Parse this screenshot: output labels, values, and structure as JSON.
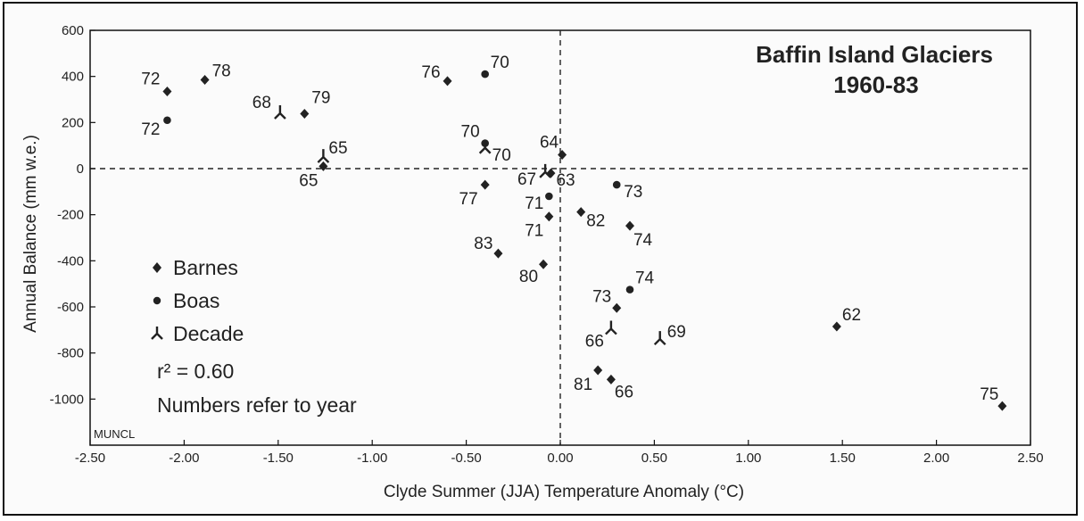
{
  "chart_data": {
    "type": "scatter",
    "title": "Baffin Island Glaciers",
    "subtitle": "1960-83",
    "xlabel": "Clyde Summer (JJA) Temperature Anomaly (°C)",
    "ylabel": "Annual Balance (mm w.e.)",
    "xlim": [
      -2.5,
      2.5
    ],
    "ylim": [
      -1200,
      600
    ],
    "xticks": [
      "-2.50",
      "-2.00",
      "-1.50",
      "-1.00",
      "-0.50",
      "0.00",
      "0.50",
      "1.00",
      "1.50",
      "2.00",
      "2.50"
    ],
    "yticks": [
      "600",
      "400",
      "200",
      "0",
      "-200",
      "-400",
      "-600",
      "-800",
      "-1000"
    ],
    "grid": false,
    "reference_lines": {
      "x": 0,
      "y": 0,
      "style": "dashed"
    },
    "legend": [
      {
        "name": "Barnes",
        "marker": "diamond"
      },
      {
        "name": "Boas",
        "marker": "circle"
      },
      {
        "name": "Decade",
        "marker": "tripod"
      }
    ],
    "annotations": [
      "r² = 0.60",
      "Numbers refer to year"
    ],
    "corner_tag": "MUNCL",
    "series": [
      {
        "name": "Barnes",
        "points": [
          {
            "x": -2.09,
            "y": 335,
            "label": "72"
          },
          {
            "x": -1.89,
            "y": 385,
            "label": "78"
          },
          {
            "x": -1.36,
            "y": 238,
            "label": "79"
          },
          {
            "x": -1.26,
            "y": 10,
            "label": "65"
          },
          {
            "x": -0.6,
            "y": 380,
            "label": "76"
          },
          {
            "x": -0.4,
            "y": -70,
            "label": "77"
          },
          {
            "x": -0.33,
            "y": -368,
            "label": "83"
          },
          {
            "x": -0.09,
            "y": -415,
            "label": "80"
          },
          {
            "x": -0.06,
            "y": -208,
            "label": "71"
          },
          {
            "x": -0.05,
            "y": -20,
            "label": "63"
          },
          {
            "x": 0.01,
            "y": 60,
            "label": "64"
          },
          {
            "x": 0.11,
            "y": -188,
            "label": "82"
          },
          {
            "x": 0.3,
            "y": -605,
            "label": "73"
          },
          {
            "x": 0.37,
            "y": -248,
            "label": "74"
          },
          {
            "x": 0.2,
            "y": -875,
            "label": "81"
          },
          {
            "x": 0.27,
            "y": -915,
            "label": "66"
          },
          {
            "x": 1.47,
            "y": -685,
            "label": "62"
          },
          {
            "x": 2.35,
            "y": -1030,
            "label": "75"
          }
        ]
      },
      {
        "name": "Boas",
        "points": [
          {
            "x": -2.09,
            "y": 210,
            "label": "72"
          },
          {
            "x": -0.4,
            "y": 410,
            "label": "70"
          },
          {
            "x": -0.4,
            "y": 110,
            "label": "70"
          },
          {
            "x": -0.06,
            "y": -120,
            "label": "71"
          },
          {
            "x": 0.3,
            "y": -70,
            "label": "73"
          },
          {
            "x": 0.37,
            "y": -525,
            "label": "74"
          }
        ]
      },
      {
        "name": "Decade",
        "points": [
          {
            "x": -1.49,
            "y": 240,
            "label": "68"
          },
          {
            "x": -1.26,
            "y": 50,
            "label": "65"
          },
          {
            "x": -0.4,
            "y": 90,
            "label": "70"
          },
          {
            "x": -0.08,
            "y": -15,
            "label": "67"
          },
          {
            "x": 0.27,
            "y": -695,
            "label": "66"
          },
          {
            "x": 0.53,
            "y": -740,
            "label": "69"
          }
        ]
      }
    ]
  }
}
